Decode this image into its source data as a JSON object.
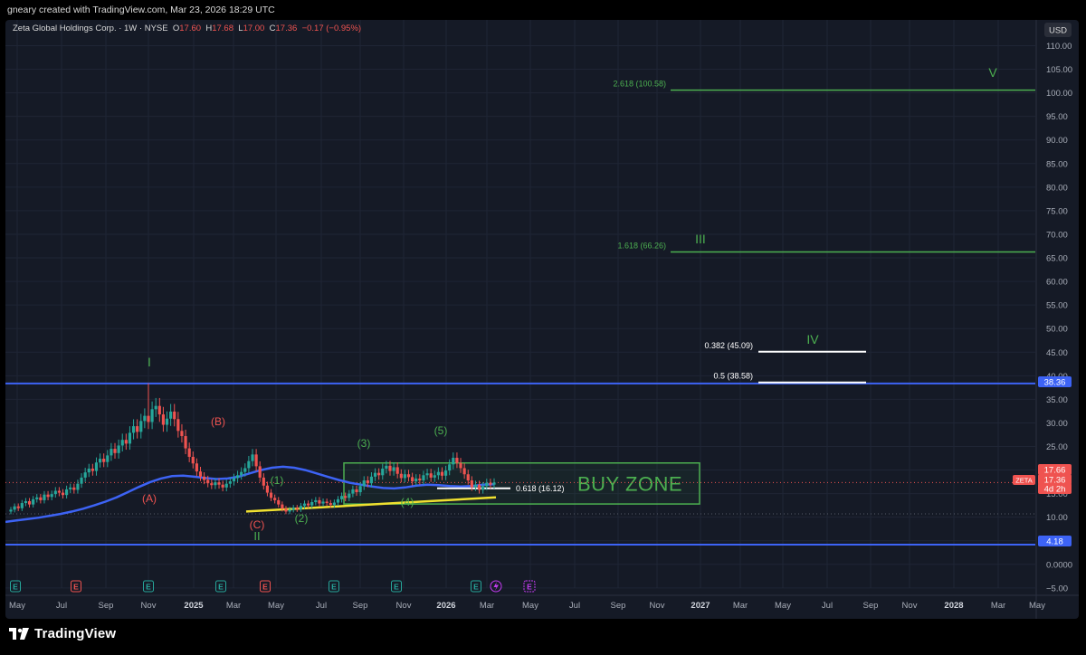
{
  "credit": "gneary created with TradingView.com, Mar 23, 2026 18:29 UTC",
  "brand": "TradingView",
  "colors": {
    "background": "#151a26",
    "grid": "#1f2535",
    "axis_text": "#a8adb8",
    "up": "#26a69a",
    "down": "#ef5350",
    "blue": "#3d63f5",
    "green_label": "#4caf50",
    "red_label": "#ef5350",
    "yellow": "#f0e130",
    "white": "#ffffff"
  },
  "chart_data": {
    "type": "candlestick",
    "symbol_line": {
      "name": "Zeta Global Holdings Corp. · 1W · NYSE",
      "o_label": "O",
      "o": "17.60",
      "h_label": "H",
      "h": "17.68",
      "l_label": "L",
      "l": "17.00",
      "c_label": "C",
      "c": "17.36",
      "change": "−0.17 (−0.95%)"
    },
    "currency": "USD",
    "y_ticks": [
      "110.00",
      "105.00",
      "100.00",
      "95.00",
      "90.00",
      "85.00",
      "80.00",
      "75.00",
      "70.00",
      "65.00",
      "60.00",
      "55.00",
      "50.00",
      "45.00",
      "40.00",
      "35.00",
      "30.00",
      "25.00",
      "20.00",
      "15.00",
      "10.00",
      "5.00",
      "0.0000",
      "−5.00"
    ],
    "x_ticks": [
      "May",
      "Jul",
      "Sep",
      "Nov",
      "2025",
      "Mar",
      "May",
      "Jul",
      "Sep",
      "Nov",
      "2026",
      "Mar",
      "May",
      "Jul",
      "Sep",
      "Nov",
      "2027",
      "Mar",
      "May",
      "Jul",
      "Sep",
      "Nov",
      "2028",
      "Mar",
      "May"
    ],
    "ylim": [
      -7,
      112
    ],
    "price_tags": [
      {
        "label": "38.36",
        "value": 38.36,
        "color": "#3d63f5"
      },
      {
        "label": "4.18",
        "value": 4.18,
        "color": "#3d63f5"
      },
      {
        "label": "17.66",
        "value": 17.66,
        "color": "#ef5350"
      },
      {
        "label": "17.36",
        "value": 17.36,
        "color": "#ef5350"
      },
      {
        "label": "4d 2h",
        "value": 15.3,
        "color": "#ef5350"
      }
    ],
    "symbol_tag": "ZETA",
    "horizontal_lines": [
      38.36,
      4.18
    ],
    "fib_levels": [
      {
        "label": "2.618 (100.58)",
        "value": 100.58,
        "color": "#4caf50",
        "from": 2026.95,
        "to": 2028.4
      },
      {
        "label": "1.618 (66.26)",
        "value": 66.26,
        "color": "#4caf50",
        "from": 2026.95,
        "to": 2028.4
      },
      {
        "label": "0.382 (45.09)",
        "value": 45.09,
        "color": "#ffffff",
        "from": 2027.6,
        "to": 2028.0
      },
      {
        "label": "0.5 (38.58)",
        "value": 38.58,
        "color": "#ffffff",
        "from": 2027.6,
        "to": 2028.0
      },
      {
        "label": "0.618 (16.12)",
        "value": 16.12,
        "color": "#ffffff",
        "from": 2026.05,
        "to": 2026.2
      }
    ],
    "buy_zone": {
      "label": "BUY ZONE",
      "top": 21.5,
      "bottom": 12.8
    },
    "wave_labels": [
      {
        "text": "I",
        "color": "#4caf50"
      },
      {
        "text": "(A)",
        "color": "#ef5350"
      },
      {
        "text": "(B)",
        "color": "#ef5350"
      },
      {
        "text": "(C)",
        "color": "#ef5350"
      },
      {
        "text": "II",
        "color": "#4caf50"
      },
      {
        "text": "(1)",
        "color": "#4caf50"
      },
      {
        "text": "(2)",
        "color": "#4caf50"
      },
      {
        "text": "(3)",
        "color": "#4caf50"
      },
      {
        "text": "(4)",
        "color": "#4caf50"
      },
      {
        "text": "(5)",
        "color": "#4caf50"
      },
      {
        "text": "III",
        "color": "#4caf50"
      },
      {
        "text": "IV",
        "color": "#4caf50"
      },
      {
        "text": "V",
        "color": "#4caf50"
      }
    ],
    "events": [
      "E",
      "E",
      "E",
      "E",
      "E",
      "E",
      "E",
      "E"
    ],
    "closes": [
      11.6,
      12.3,
      11.9,
      13.0,
      13.4,
      12.7,
      13.8,
      14.2,
      13.6,
      14.8,
      14.3,
      14.9,
      15.6,
      15.2,
      14.7,
      15.9,
      16.3,
      15.8,
      17.1,
      18.4,
      19.5,
      20.3,
      19.8,
      21.6,
      22.4,
      21.7,
      23.1,
      24.5,
      23.6,
      25.2,
      26.4,
      25.6,
      27.9,
      29.3,
      28.1,
      30.4,
      31.5,
      30.2,
      32.9,
      33.6,
      31.8,
      29.6,
      30.9,
      32.4,
      30.8,
      28.3,
      27.2,
      24.6,
      22.8,
      21.4,
      19.7,
      18.6,
      17.9,
      17.2,
      16.8,
      17.4,
      16.9,
      16.3,
      17.1,
      17.6,
      18.3,
      18.9,
      19.6,
      20.4,
      21.9,
      23.3,
      20.8,
      18.4,
      16.7,
      15.2,
      14.1,
      13.6,
      12.7,
      11.8,
      11.2,
      11.6,
      12.0,
      11.7,
      12.4,
      12.9,
      12.5,
      13.2,
      13.6,
      12.9,
      13.3,
      13.0,
      12.6,
      13.1,
      13.8,
      14.5,
      14.1,
      15.0,
      15.9,
      15.3,
      16.6,
      17.8,
      17.2,
      18.6,
      19.4,
      18.9,
      20.3,
      20.9,
      19.8,
      20.6,
      19.2,
      18.3,
      19.1,
      18.5,
      17.6,
      18.2,
      17.8,
      18.9,
      19.3,
      18.4,
      18.9,
      19.6,
      18.8,
      19.9,
      21.2,
      22.6,
      21.5,
      20.4,
      19.1,
      17.8,
      16.4,
      16.9,
      15.8,
      16.6,
      17.3,
      16.9,
      17.36
    ],
    "moving_average": [
      9.0,
      9.3,
      9.6,
      9.9,
      10.3,
      10.7,
      11.2,
      11.8,
      12.5,
      13.3,
      14.2,
      15.3,
      16.4,
      17.4,
      18.2,
      18.7,
      18.8,
      18.6,
      18.3,
      18.1,
      18.2,
      18.6,
      19.3,
      20.0,
      20.5,
      20.7,
      20.5,
      20.0,
      19.3,
      18.6,
      17.9,
      17.3,
      16.9,
      16.5,
      16.2,
      16.1,
      16.3,
      16.7,
      16.9,
      16.8,
      16.6,
      16.5,
      16.6,
      16.9,
      17.0
    ]
  }
}
